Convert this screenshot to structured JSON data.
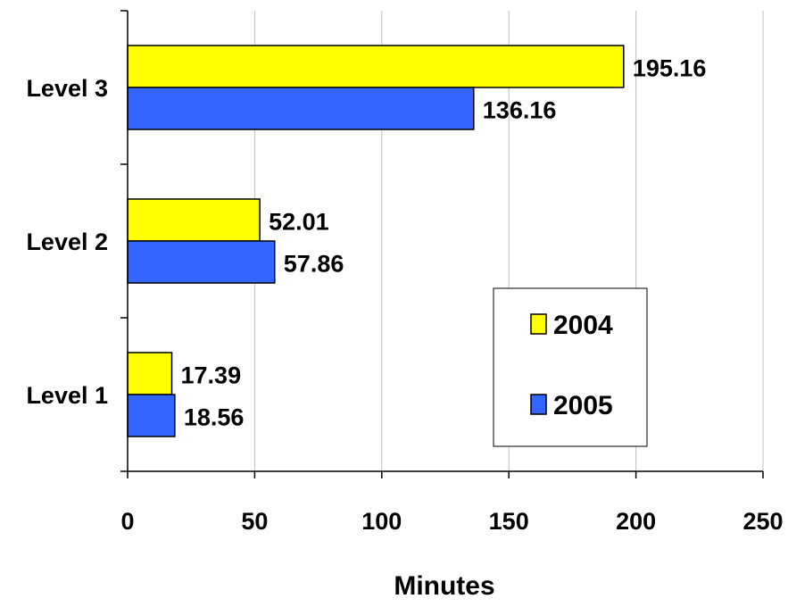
{
  "chart_data": {
    "type": "bar",
    "orientation": "horizontal",
    "categories": [
      "Level 1",
      "Level 2",
      "Level 3"
    ],
    "series": [
      {
        "name": "2004",
        "values": [
          17.39,
          52.01,
          195.16
        ],
        "labels": [
          "17.39",
          "52.01",
          "195.16"
        ],
        "color": "#ffff00"
      },
      {
        "name": "2005",
        "values": [
          18.56,
          57.86,
          136.16
        ],
        "labels": [
          "18.56",
          "57.86",
          "136.16"
        ],
        "color": "#3366ff"
      }
    ],
    "xlabel": "Minutes",
    "ylabel": "",
    "xlim": [
      0,
      250
    ],
    "xticks": [
      "0",
      "50",
      "100",
      "150",
      "200",
      "250"
    ],
    "grid": "vertical",
    "legend_position": "lower-right"
  }
}
